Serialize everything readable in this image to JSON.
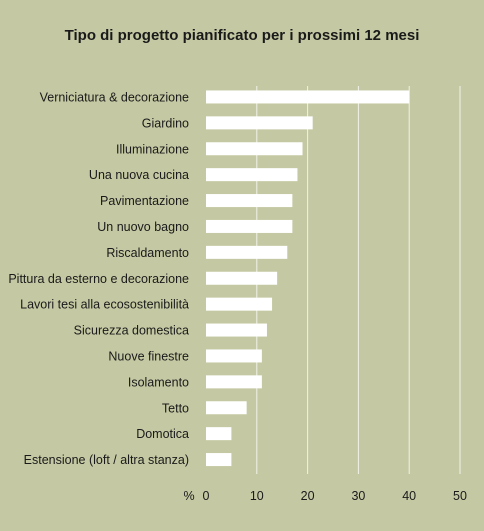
{
  "chart_data": {
    "type": "bar",
    "orientation": "horizontal",
    "title": "Tipo di progetto pianificato per i prossimi 12 mesi",
    "unit": "%",
    "categories": [
      "Verniciatura & decorazione",
      "Giardino",
      "Illuminazione",
      "Una nuova cucina",
      "Pavimentazione",
      "Un nuovo bagno",
      "Riscaldamento",
      "Pittura da esterno e decorazione",
      "Lavori tesi alla ecosostenibilità",
      "Sicurezza domestica",
      "Nuove finestre",
      "Isolamento",
      "Tetto",
      "Domotica",
      "Estensione (loft / altra stanza)"
    ],
    "values": [
      40,
      21,
      19,
      18,
      17,
      17,
      16,
      14,
      13,
      12,
      11,
      11,
      8,
      5,
      5
    ],
    "xlim": [
      0,
      50
    ],
    "xticks": [
      0,
      10,
      20,
      30,
      40,
      50
    ],
    "grid": true,
    "colors": {
      "background": "#c5c9a3",
      "bar": "#ffffff",
      "grid": "#ffffff",
      "text": "#1a1a1a"
    }
  }
}
